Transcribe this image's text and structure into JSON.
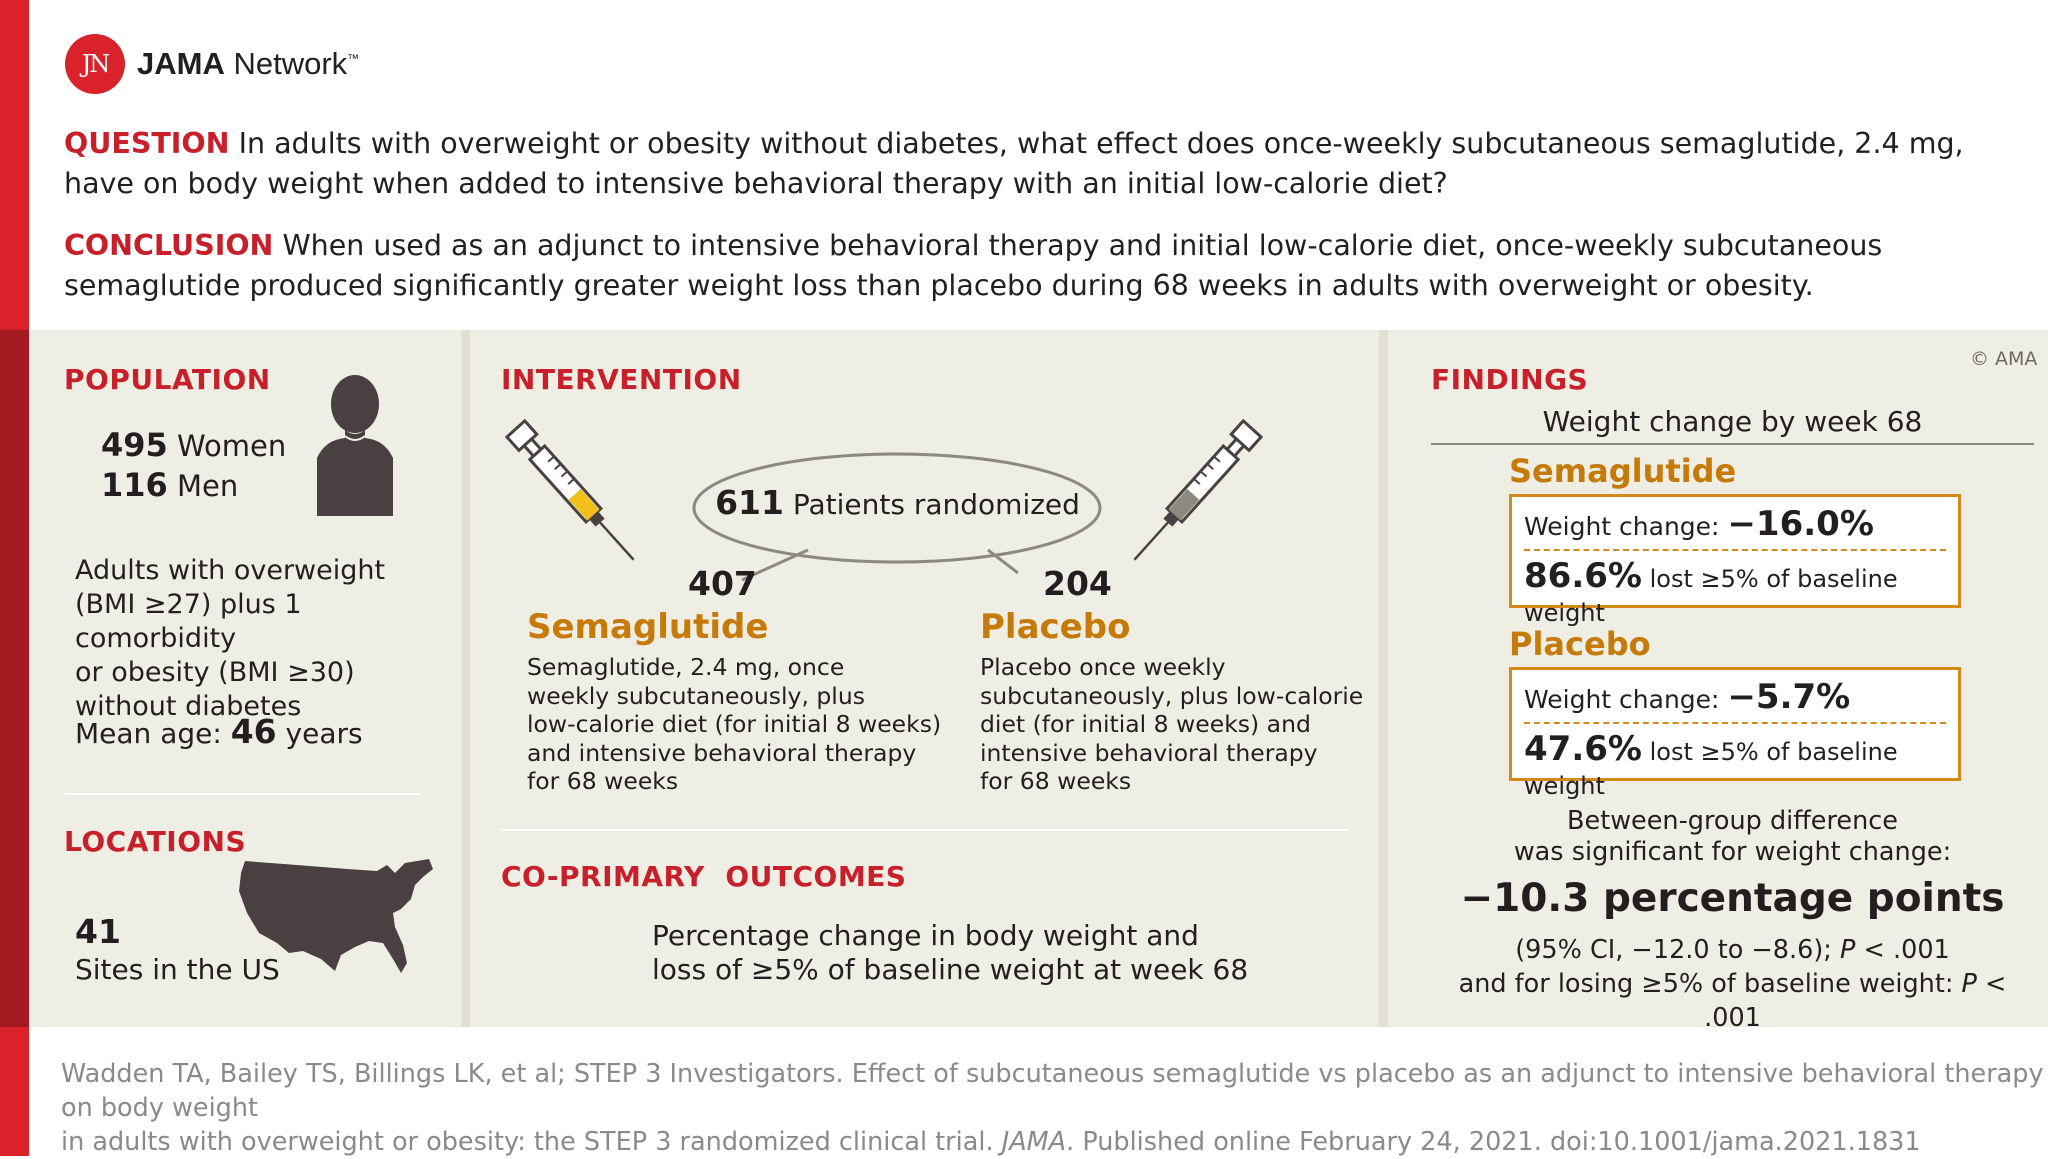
{
  "logo": {
    "mark": "JN",
    "brand_bold": "JAMA",
    "brand_rest": " Network",
    "tm": "™"
  },
  "question": {
    "label": "QUESTION",
    "text": "In adults with overweight or obesity without diabetes, what effect does once-weekly subcutaneous semaglutide, 2.4 mg, have on body weight when added to intensive behavioral therapy with an initial low-calorie diet?"
  },
  "conclusion": {
    "label": "CONCLUSION",
    "text": "When used as an adjunct to intensive behavioral therapy and initial low-calorie diet, once-weekly subcutaneous semaglutide produced significantly greater weight loss than placebo during 68 weeks in adults with overweight or obesity."
  },
  "population": {
    "heading": "POPULATION",
    "women_count": "495",
    "women_label": "Women",
    "men_count": "116",
    "men_label": "Men",
    "lines": [
      "Adults with overweight",
      "(BMI ≥27) plus 1 comorbidity",
      "or obesity (BMI ≥30)",
      "without diabetes"
    ],
    "age_label": "Mean age:",
    "age_value": "46",
    "age_unit": "years"
  },
  "locations": {
    "heading": "LOCATIONS",
    "count": "41",
    "label": "Sites in the US"
  },
  "intervention": {
    "heading": "INTERVENTION",
    "randomized_count": "611",
    "randomized_label": "Patients randomized",
    "sema_count": "407",
    "sema_name": "Semaglutide",
    "sema_lines": [
      "Semaglutide, 2.4 mg, once",
      "weekly subcutaneously, plus",
      "low-calorie diet (for initial 8 weeks)",
      "and intensive behavioral therapy",
      "for 68 weeks"
    ],
    "placebo_count": "204",
    "placebo_name": "Placebo",
    "placebo_lines": [
      "Placebo once weekly",
      "subcutaneously, plus low-calorie",
      "diet (for initial 8 weeks) and",
      "intensive behavioral therapy",
      "for 68 weeks"
    ]
  },
  "outcomes": {
    "heading": "CO-PRIMARY  OUTCOMES",
    "lines": [
      "Percentage change in body weight and",
      "loss of ≥5% of baseline weight at week 68"
    ]
  },
  "findings": {
    "heading": "FINDINGS",
    "copyright": "© AMA",
    "subtitle": "Weight change by week 68",
    "sema": {
      "name": "Semaglutide",
      "wc_label": "Weight change:",
      "wc_value": "−16.0%",
      "lost_value": "86.6%",
      "lost_label": "lost ≥5% of baseline weight"
    },
    "placebo": {
      "name": "Placebo",
      "wc_label": "Weight change:",
      "wc_value": "−5.7%",
      "lost_value": "47.6%",
      "lost_label": "lost ≥5% of baseline weight"
    },
    "diff_lines": [
      "Between-group difference",
      "was significant for weight change:"
    ],
    "diff_value": "−10.3 percentage points",
    "ci_text": "(95% CI, −12.0 to −8.6); ",
    "ci_p": "P",
    "ci_p_val": " < .001",
    "losing_text": "and for losing ≥5% of baseline weight: ",
    "losing_p": "P",
    "losing_p_val": " < .001"
  },
  "footer": {
    "line1": "Wadden TA, Bailey TS, Billings LK, et al; STEP 3 Investigators. Effect of subcutaneous semaglutide vs placebo as an adjunct to intensive behavioral therapy on body weight",
    "line2a": "in adults with overweight or obesity: the STEP 3 randomized clinical trial. ",
    "line2_journal": "JAMA",
    "line2b": ". Published online February 24, 2021. doi:10.1001/jama.2021.1831"
  },
  "colors": {
    "red": "#d9222a",
    "dark_red": "#a31a20",
    "orange": "#c67a08",
    "panel_bg": "#efeee4",
    "syringe_yellow": "#f2c01a",
    "syringe_gray": "#8c8a7e"
  }
}
